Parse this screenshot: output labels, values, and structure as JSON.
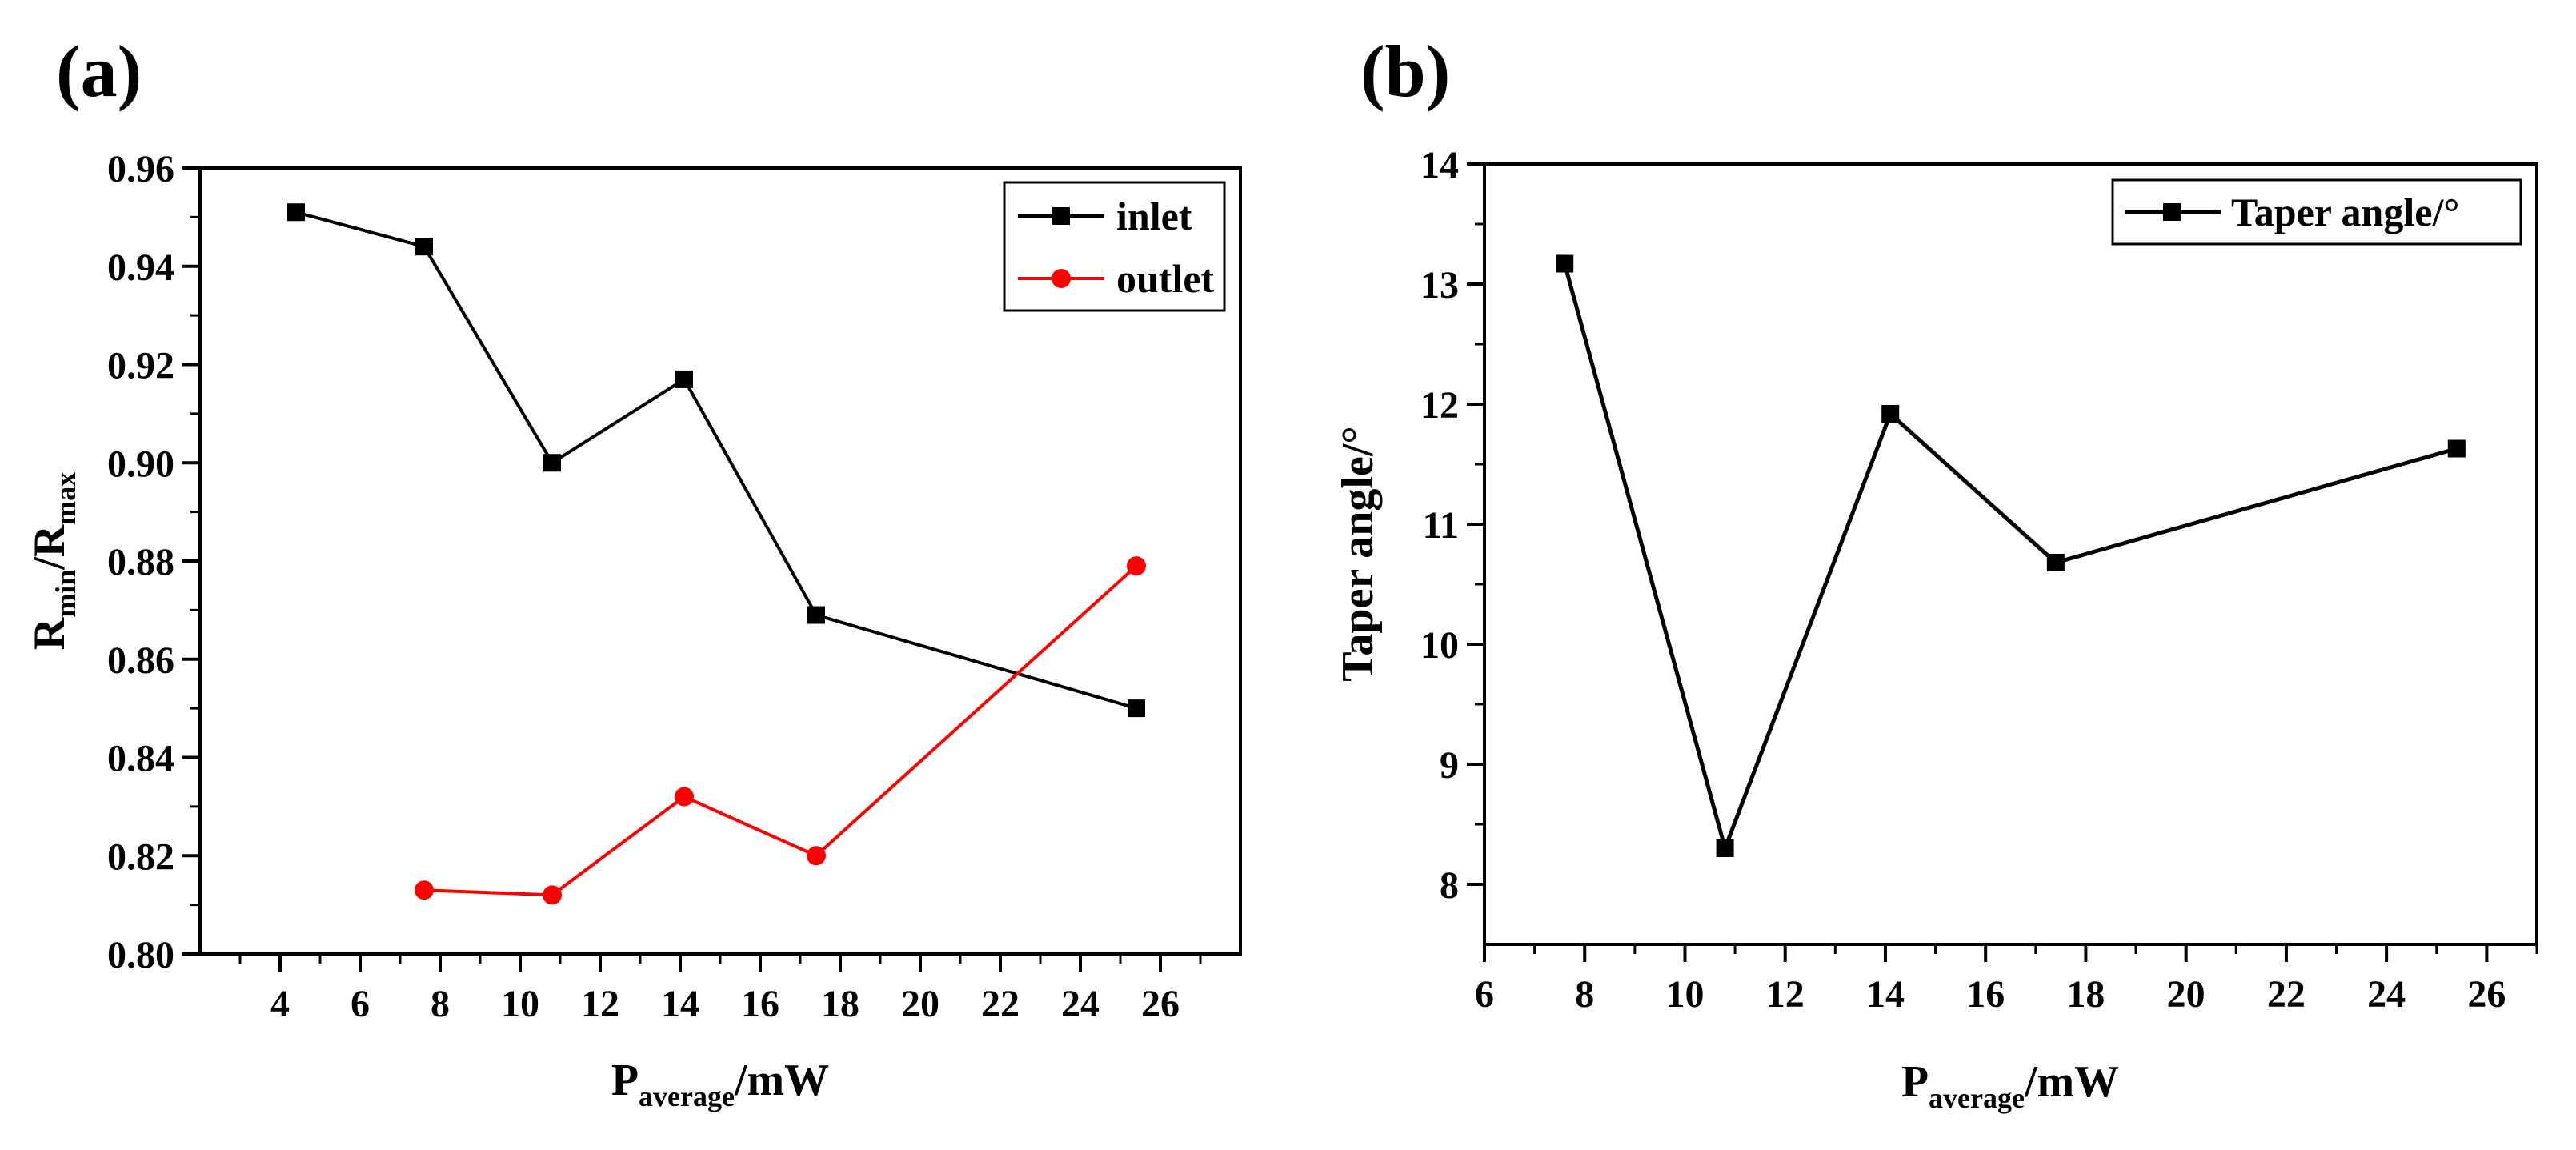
{
  "figure": {
    "panel_a_label": "(a)",
    "panel_b_label": "(b)"
  },
  "chart_data": [
    {
      "type": "line",
      "panel": "(a)",
      "xlabel": "P_average/mW",
      "xlabel_main": "P",
      "xlabel_sub": "average",
      "xlabel_suffix": "/mW",
      "ylabel": "R_min/R_max",
      "ylabel_r1": "R",
      "ylabel_sub1": "min",
      "ylabel_slash": "/R",
      "ylabel_sub2": "max",
      "xlim": [
        2,
        28
      ],
      "ylim": [
        0.8,
        0.96
      ],
      "xticks": [
        4,
        6,
        8,
        10,
        12,
        14,
        16,
        18,
        20,
        22,
        24,
        26
      ],
      "yticks": [
        "0.80",
        "0.82",
        "0.84",
        "0.86",
        "0.88",
        "0.90",
        "0.92",
        "0.94",
        "0.96"
      ],
      "legend_position": "top-right",
      "series": [
        {
          "name": "inlet",
          "color": "#000000",
          "marker": "square",
          "x": [
            4.4,
            7.6,
            10.8,
            14.1,
            17.4,
            25.4
          ],
          "y": [
            0.951,
            0.944,
            0.9,
            0.917,
            0.869,
            0.85
          ]
        },
        {
          "name": "outlet",
          "color": "#ff0000",
          "marker": "circle",
          "x": [
            7.6,
            10.8,
            14.1,
            17.4,
            25.4
          ],
          "y": [
            0.813,
            0.812,
            0.832,
            0.82,
            0.879
          ]
        }
      ]
    },
    {
      "type": "line",
      "panel": "(b)",
      "xlabel": "P_average/mW",
      "xlabel_main": "P",
      "xlabel_sub": "average",
      "xlabel_suffix": "/mW",
      "ylabel": "Taper angle/°",
      "xlim": [
        6,
        27
      ],
      "ylim": [
        7.5,
        14
      ],
      "xticks": [
        6,
        8,
        10,
        12,
        14,
        16,
        18,
        20,
        22,
        24,
        26
      ],
      "yticks": [
        8,
        9,
        10,
        11,
        12,
        13,
        14
      ],
      "legend_position": "top-right",
      "series": [
        {
          "name": "Taper angle/°",
          "color": "#000000",
          "marker": "square",
          "x": [
            7.6,
            10.8,
            14.1,
            17.4,
            25.4
          ],
          "y": [
            13.17,
            8.3,
            11.92,
            10.68,
            11.63
          ]
        }
      ]
    }
  ]
}
